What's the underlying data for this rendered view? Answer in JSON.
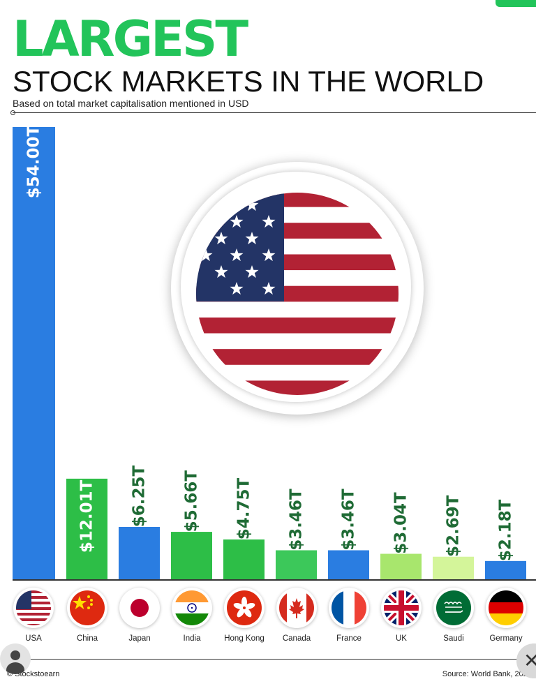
{
  "header": {
    "title": "LARGEST",
    "subtitle": "STOCK MARKETS IN THE WORLD",
    "note": "Based on total market capitalisation mentioned in USD"
  },
  "chart_data": {
    "type": "bar",
    "categories": [
      "USA",
      "China",
      "Japan",
      "India",
      "Hong Kong",
      "Canada",
      "France",
      "UK",
      "Saudi",
      "Germany"
    ],
    "values": [
      54.0,
      12.01,
      6.25,
      5.66,
      4.75,
      3.46,
      3.46,
      3.04,
      2.69,
      2.18
    ],
    "value_labels": [
      "$54.00T",
      "$12.01T",
      "$6.25T",
      "$5.66T",
      "$4.75T",
      "$3.46T",
      "$3.46T",
      "$3.04T",
      "$2.69T",
      "$2.18T"
    ],
    "ylim": [
      0,
      54
    ],
    "bar_colors": [
      "#2a7de1",
      "#2dbe47",
      "#2a7de1",
      "#2dbe47",
      "#2dbe47",
      "#3cc85a",
      "#2a7de1",
      "#a8e66d",
      "#d4f59a",
      "#2a7de1"
    ],
    "grid": false,
    "legend": "none"
  },
  "flags": [
    "usa-flag-icon",
    "china-flag-icon",
    "japan-flag-icon",
    "india-flag-icon",
    "hong-kong-flag-icon",
    "canada-flag-icon",
    "france-flag-icon",
    "uk-flag-icon",
    "saudi-flag-icon",
    "germany-flag-icon"
  ],
  "footer": {
    "credit": "© Stockstoearn",
    "source": "Source: World Bank, 2024"
  },
  "colors": {
    "accent": "#22c45a",
    "label_text": "#1f6b35"
  }
}
